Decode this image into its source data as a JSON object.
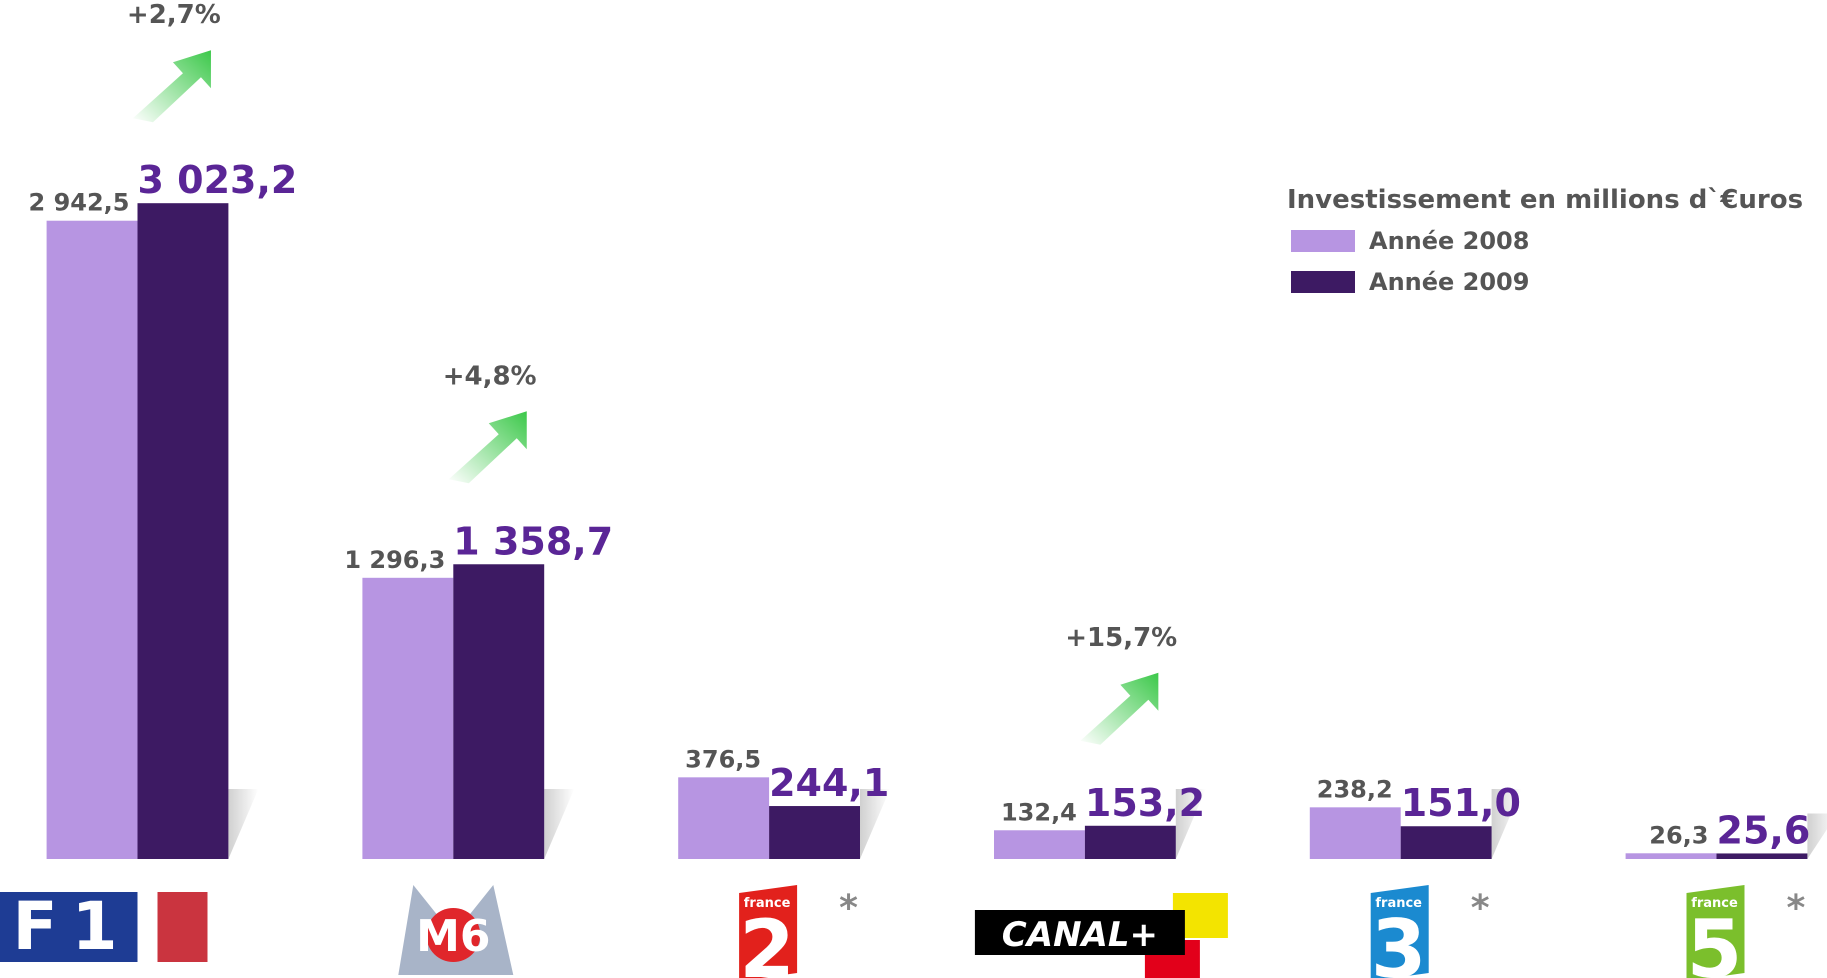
{
  "chart_data": {
    "type": "bar",
    "legend_title": "Investissement en millions d`€uros",
    "categories": [
      "TF1",
      "M6",
      "france 2",
      "CANAL+",
      "france 3",
      "france 5"
    ],
    "series": [
      {
        "name": "Année 2008",
        "color": "#b795e2",
        "values": [
          2942.5,
          1296.3,
          376.5,
          132.4,
          238.2,
          26.3
        ],
        "value_labels": [
          "2 942,5",
          "1 296,3",
          "376,5",
          "132,4",
          "238,2",
          "26,3"
        ]
      },
      {
        "name": "Année 2009",
        "color": "#3d1a63",
        "values": [
          3023.2,
          1358.7,
          244.1,
          153.2,
          151.0,
          25.6
        ],
        "value_labels": [
          "3 023,2",
          "1 358,7",
          "244,1",
          "153,2",
          "151,0",
          "25,6"
        ]
      }
    ],
    "ylim": [
      0,
      3900
    ],
    "annotations": [
      {
        "text": "+2,7%",
        "category": "TF1"
      },
      {
        "text": "+4,8%",
        "category": "M6"
      },
      {
        "text": "+15,7%",
        "category": "CANAL+"
      }
    ],
    "markers": [
      {
        "text": "*",
        "category": "france 2"
      },
      {
        "text": "*",
        "category": "france 3"
      },
      {
        "text": "*",
        "category": "france 5"
      }
    ]
  }
}
